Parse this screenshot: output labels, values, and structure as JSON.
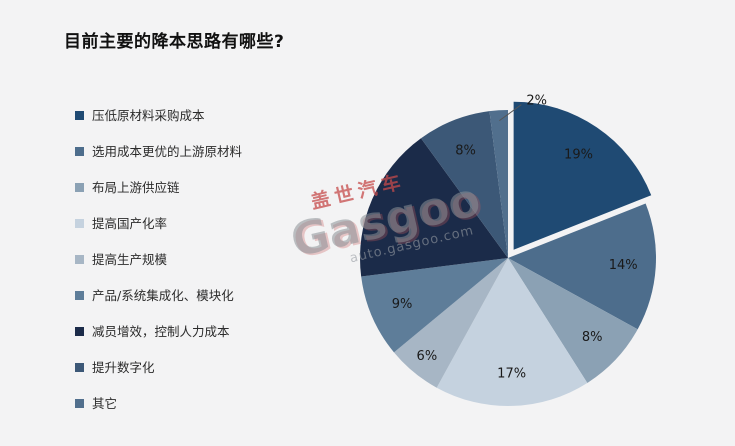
{
  "page": {
    "background": "#f3f3f4"
  },
  "watermark": {
    "brand_cn": "盖世汽车",
    "brand_en": "Gasgoo",
    "site": "auto.gasgoo.com"
  },
  "chart_data": {
    "type": "pie",
    "title": "目前主要的降本思路有哪些?",
    "legend_position": "left",
    "start_angle_deg": 0,
    "direction": "clockwise",
    "label_color": "#1a1a1a",
    "slices": [
      {
        "name": "压低原材料采购成本",
        "value": 19,
        "label": "19%",
        "color": "#1f4a73",
        "exploded": true
      },
      {
        "name": "选用成本更优的上游原材料",
        "value": 14,
        "label": "14%",
        "color": "#4d6d8c"
      },
      {
        "name": "布局上游供应链",
        "value": 8,
        "label": "8%",
        "color": "#8ba1b4"
      },
      {
        "name": "提高国产化率",
        "value": 17,
        "label": "17%",
        "color": "#c5d2df"
      },
      {
        "name": "提高生产规模",
        "value": 6,
        "label": "6%",
        "color": "#a7b6c5"
      },
      {
        "name": "产品/系统集成化、模块化",
        "value": 9,
        "label": "9%",
        "color": "#5e7d99"
      },
      {
        "name": "减员增效，控制人力成本",
        "value": 17,
        "label": "",
        "color": "#1b2b49"
      },
      {
        "name": "提升数字化",
        "value": 8,
        "label": "8%",
        "color": "#3c5877"
      },
      {
        "name": "其它",
        "value": 2,
        "label": "2%",
        "color": "#516f8d",
        "callout": true
      }
    ]
  }
}
